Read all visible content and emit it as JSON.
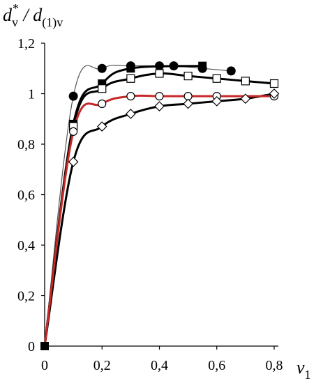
{
  "chart_data": {
    "type": "line",
    "title": "",
    "ylabel": {
      "var": "d",
      "sub": "v",
      "sup": "*",
      "sep": " / ",
      "var2": "d",
      "sub2": "(1)v"
    },
    "xlabel": {
      "var": "v",
      "sub": "1"
    },
    "xlim": [
      0,
      0.8
    ],
    "ylim": [
      0,
      1.2
    ],
    "xticks": [
      0,
      0.2,
      0.4,
      0.6,
      0.8
    ],
    "xtick_labels": [
      "0",
      "0,2",
      "0,4",
      "0,6",
      "0,8"
    ],
    "yticks": [
      0,
      0.2,
      0.4,
      0.6,
      0.8,
      1.0,
      1.2
    ],
    "ytick_labels": [
      "0",
      "0,2",
      "0,4",
      "0,6",
      "0,8",
      "1",
      "1,2"
    ],
    "grid": false,
    "series": [
      {
        "marker": "filled-circle",
        "line_color": "#555555",
        "line_width": 1.2,
        "x": [
          0,
          0.1,
          0.2,
          0.3,
          0.4,
          0.45,
          0.55,
          0.65
        ],
        "y": [
          0,
          0.99,
          1.1,
          1.11,
          1.11,
          1.11,
          1.1,
          1.09
        ]
      },
      {
        "marker": "filled-square",
        "line_color": "#000000",
        "line_width": 3,
        "x": [
          0,
          0.1,
          0.2,
          0.3,
          0.55
        ],
        "y": [
          0,
          0.88,
          1.04,
          1.1,
          1.11
        ]
      },
      {
        "marker": "open-square",
        "line_color": "#000000",
        "line_width": 3,
        "x": [
          0,
          0.1,
          0.2,
          0.3,
          0.4,
          0.5,
          0.6,
          0.7,
          0.8
        ],
        "y": [
          0,
          0.87,
          1.02,
          1.06,
          1.08,
          1.07,
          1.06,
          1.05,
          1.04
        ]
      },
      {
        "marker": "open-circle",
        "line_color": "#c62828",
        "line_width": 3,
        "x": [
          0,
          0.1,
          0.2,
          0.3,
          0.4,
          0.5,
          0.6,
          0.8
        ],
        "y": [
          0,
          0.85,
          0.96,
          0.99,
          0.99,
          0.99,
          0.99,
          0.99
        ]
      },
      {
        "marker": "open-diamond",
        "line_color": "#000000",
        "line_width": 3,
        "x": [
          0,
          0.1,
          0.2,
          0.3,
          0.4,
          0.5,
          0.6,
          0.7,
          0.8
        ],
        "y": [
          0,
          0.73,
          0.87,
          0.92,
          0.95,
          0.96,
          0.97,
          0.98,
          1.0
        ]
      }
    ]
  }
}
